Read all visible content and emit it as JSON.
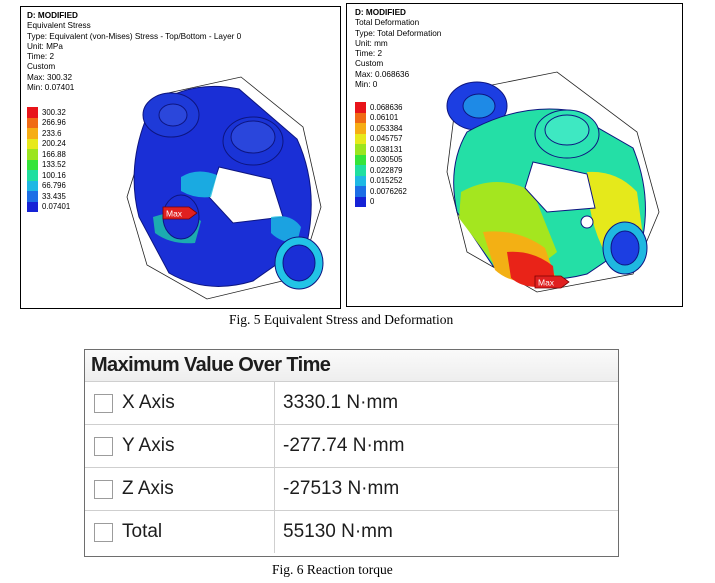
{
  "fig5": {
    "caption": "Fig. 5 Equivalent Stress and Deformation",
    "stress": {
      "title": "D: MODIFIED",
      "lines": [
        "Equivalent Stress",
        "Type: Equivalent (von-Mises) Stress - Top/Bottom - Layer 0",
        "Unit: MPa",
        "Time: 2",
        "Custom",
        "Max: 300.32",
        "Min: 0.07401"
      ],
      "legend": [
        "300.32",
        "266.96",
        "233.6",
        "200.24",
        "166.88",
        "133.52",
        "100.16",
        "66.796",
        "33.435",
        "0.07401"
      ],
      "marker": "Max"
    },
    "deformation": {
      "title": "D: MODIFIED",
      "lines": [
        "Total Deformation",
        "Type: Total Deformation",
        "Unit: mm",
        "Time: 2",
        "Custom",
        "Max: 0.068636",
        "Min: 0"
      ],
      "legend": [
        "0.068636",
        "0.06101",
        "0.053384",
        "0.045757",
        "0.038131",
        "0.030505",
        "0.022879",
        "0.015252",
        "0.0076262",
        "0"
      ],
      "marker": "Max"
    },
    "legend_colors": [
      "#e8141a",
      "#f06a14",
      "#f6ad14",
      "#e7e91c",
      "#9be51f",
      "#34e43a",
      "#1fdfa0",
      "#1eb8e4",
      "#1c6ee6",
      "#1522d6"
    ]
  },
  "fig6": {
    "caption": "Fig. 6 Reaction torque",
    "table": {
      "title": "Maximum Value Over Time",
      "rows": [
        {
          "label": "X Axis",
          "value": "3330.1 N·mm"
        },
        {
          "label": "Y Axis",
          "value": "-277.74 N·mm"
        },
        {
          "label": "Z Axis",
          "value": "-27513 N·mm"
        },
        {
          "label": "Total",
          "value": "55130 N·mm"
        }
      ]
    }
  }
}
